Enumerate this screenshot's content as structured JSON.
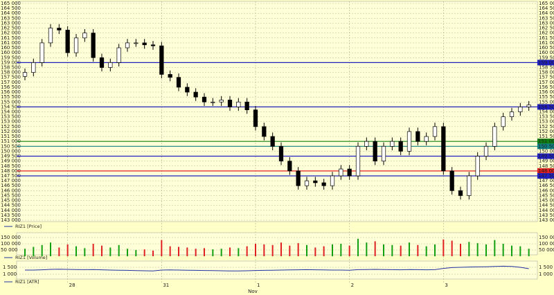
{
  "chart_data": {
    "type": "candlestick",
    "xlim": [
      0,
      60
    ],
    "xticks": [
      {
        "value": 5,
        "label": "28"
      },
      {
        "value": 16,
        "label": "31"
      },
      {
        "value": 27,
        "label": "1"
      },
      {
        "value": 38,
        "label": "2"
      },
      {
        "value": 49,
        "label": "3"
      }
    ],
    "x_axis_label": "Nov",
    "legend_price": "RIZ1 [Price]",
    "legend_volume": "RIZ1 [Volume]",
    "legend_atr": "RIZ1 [ATR]",
    "up_color": "#ffffff",
    "down_color": "#000000",
    "ylim": [
      143000,
      165000
    ],
    "yticks": [
      {
        "value": 143000,
        "label": "143 000"
      },
      {
        "value": 143500,
        "label": "143 500"
      },
      {
        "value": 144000,
        "label": "144 000"
      },
      {
        "value": 144500,
        "label": "144 500"
      },
      {
        "value": 145000,
        "label": "145 000"
      },
      {
        "value": 145500,
        "label": "145 500"
      },
      {
        "value": 146000,
        "label": "146 000"
      },
      {
        "value": 146500,
        "label": "146 500"
      },
      {
        "value": 147000,
        "label": "147 000"
      },
      {
        "value": 147500,
        "label": "147 500"
      },
      {
        "value": 148000,
        "label": "148 000"
      },
      {
        "value": 148500,
        "label": "148 500"
      },
      {
        "value": 149000,
        "label": "149 000"
      },
      {
        "value": 149500,
        "label": "149 500"
      },
      {
        "value": 150000,
        "label": "150 000"
      },
      {
        "value": 150500,
        "label": "150 500"
      },
      {
        "value": 151000,
        "label": "151 000"
      },
      {
        "value": 151500,
        "label": "151 500"
      },
      {
        "value": 152000,
        "label": "152 000"
      },
      {
        "value": 152500,
        "label": "152 500"
      },
      {
        "value": 153000,
        "label": "153 000"
      },
      {
        "value": 153500,
        "label": "153 500"
      },
      {
        "value": 154000,
        "label": "154 000"
      },
      {
        "value": 154500,
        "label": "154 500"
      },
      {
        "value": 155000,
        "label": "155 000"
      },
      {
        "value": 155500,
        "label": "155 500"
      },
      {
        "value": 156000,
        "label": "156 000"
      },
      {
        "value": 156500,
        "label": "156 500"
      },
      {
        "value": 157000,
        "label": "157 000"
      },
      {
        "value": 157500,
        "label": "157 500"
      },
      {
        "value": 158000,
        "label": "158 000"
      },
      {
        "value": 158500,
        "label": "158 500"
      },
      {
        "value": 159000,
        "label": "159 000"
      },
      {
        "value": 159500,
        "label": "159 500"
      },
      {
        "value": 160000,
        "label": "160 000"
      },
      {
        "value": 160500,
        "label": "160 500"
      },
      {
        "value": 161000,
        "label": "161 000"
      },
      {
        "value": 161500,
        "label": "161 500"
      },
      {
        "value": 162000,
        "label": "162 000"
      },
      {
        "value": 162500,
        "label": "162 500"
      },
      {
        "value": 163000,
        "label": "163 000"
      },
      {
        "value": 163500,
        "label": "163 500"
      },
      {
        "value": 164000,
        "label": "164 000"
      },
      {
        "value": 164500,
        "label": "164 500"
      },
      {
        "value": 165000,
        "label": "165 000"
      }
    ],
    "grid": true,
    "levels": [
      {
        "value": 159000,
        "label": "159 000",
        "color": "#2020c0"
      },
      {
        "value": 154500,
        "label": "154 500",
        "color": "#2020c0"
      },
      {
        "value": 151000,
        "label": "151 000",
        "color": "#108010"
      },
      {
        "value": 150500,
        "label": "150 500",
        "color": "#108080"
      },
      {
        "value": 149500,
        "label": "149 500",
        "color": "#2020c0"
      },
      {
        "value": 148000,
        "label": "148 000",
        "color": "#e02020"
      },
      {
        "value": 147500,
        "label": "147 500",
        "color": "#2020c0"
      }
    ],
    "open": [
      157600,
      158000,
      159000,
      161000,
      162500,
      162300,
      160000,
      161500,
      162000,
      159500,
      158500,
      159000,
      160500,
      161000,
      161000,
      160800,
      160700,
      157800,
      157500,
      156500,
      156000,
      155500,
      155000,
      155000,
      155200,
      154500,
      155000,
      154200,
      152500,
      151500,
      150500,
      149000,
      148000,
      146500,
      147000,
      146800,
      146500,
      147500,
      148200,
      147500,
      150500,
      151000,
      149000,
      150500,
      151000,
      150000,
      152000,
      151000,
      151500,
      152500,
      148000,
      146000,
      145500,
      147500,
      149500,
      150500,
      152500,
      153500,
      154000,
      154500
    ],
    "high": [
      158400,
      159400,
      161400,
      162900,
      162900,
      162700,
      161900,
      162400,
      162400,
      159900,
      159400,
      160900,
      161400,
      161400,
      161400,
      161200,
      161100,
      158200,
      157900,
      156900,
      156400,
      155900,
      155400,
      155600,
      155600,
      155400,
      155400,
      154600,
      152900,
      151900,
      150900,
      149400,
      148400,
      147400,
      147400,
      147200,
      147900,
      148600,
      148600,
      150900,
      151400,
      151400,
      150900,
      151400,
      151400,
      152400,
      152400,
      151900,
      152900,
      152900,
      148400,
      146400,
      147900,
      149900,
      150900,
      152900,
      153900,
      154400,
      154900,
      155100
    ],
    "low": [
      157200,
      157600,
      158600,
      160600,
      161900,
      159600,
      159600,
      161100,
      159100,
      158100,
      158100,
      158600,
      160100,
      160600,
      160400,
      160300,
      157400,
      157100,
      156100,
      155600,
      155100,
      154600,
      154600,
      154600,
      154100,
      154100,
      153800,
      152100,
      151100,
      150100,
      148600,
      147600,
      146100,
      146100,
      146400,
      146100,
      146100,
      147100,
      147100,
      147100,
      150100,
      148600,
      148600,
      150100,
      149600,
      149600,
      150600,
      150600,
      151100,
      147600,
      145600,
      145100,
      145100,
      147100,
      149100,
      150100,
      152100,
      153100,
      153600,
      154100
    ],
    "close": [
      158000,
      159000,
      161000,
      162500,
      162300,
      160000,
      161500,
      162000,
      159500,
      158500,
      159000,
      160500,
      161000,
      161000,
      160800,
      160700,
      157800,
      157500,
      156500,
      156000,
      155500,
      155000,
      155000,
      155200,
      154500,
      155000,
      154200,
      152500,
      151500,
      150500,
      149000,
      148000,
      146500,
      147000,
      146800,
      146500,
      147500,
      148200,
      147500,
      150500,
      151000,
      149000,
      150500,
      151000,
      150000,
      152000,
      151000,
      151500,
      152500,
      148000,
      146000,
      145500,
      147500,
      149500,
      150500,
      152500,
      153500,
      154000,
      154500,
      154700
    ],
    "volume": {
      "color_up": "#10a010",
      "color_down": "#e02020",
      "ylim": [
        0,
        178000
      ],
      "yticks": [
        {
          "value": 50000,
          "label": "50 000"
        },
        {
          "value": 100000,
          "label": "100 000"
        },
        {
          "value": 150000,
          "label": "150 000"
        }
      ],
      "values": [
        60000,
        75000,
        90000,
        110000,
        70000,
        95000,
        80000,
        65000,
        100000,
        85000,
        70000,
        90000,
        60000,
        50000,
        55000,
        45000,
        130000,
        80000,
        75000,
        70000,
        60000,
        65000,
        55000,
        60000,
        70000,
        65000,
        80000,
        100000,
        95000,
        90000,
        110000,
        85000,
        105000,
        90000,
        70000,
        80000,
        95000,
        100000,
        85000,
        140000,
        110000,
        120000,
        95000,
        90000,
        85000,
        110000,
        90000,
        80000,
        95000,
        135000,
        125000,
        100000,
        115000,
        105000,
        95000,
        130000,
        100000,
        85000,
        80000,
        60000
      ]
    },
    "atr": {
      "color": "#2030a0",
      "ylim": [
        700,
        1900
      ],
      "yticks": [
        {
          "value": 1000,
          "label": "1 000"
        },
        {
          "value": 1500,
          "label": "1 500"
        }
      ],
      "values": [
        1300,
        1300,
        1320,
        1350,
        1360,
        1350,
        1340,
        1330,
        1340,
        1320,
        1300,
        1290,
        1280,
        1260,
        1250,
        1240,
        1300,
        1310,
        1300,
        1290,
        1280,
        1270,
        1260,
        1250,
        1240,
        1240,
        1250,
        1270,
        1280,
        1290,
        1300,
        1310,
        1320,
        1330,
        1320,
        1310,
        1300,
        1300,
        1290,
        1330,
        1340,
        1350,
        1340,
        1330,
        1320,
        1340,
        1330,
        1320,
        1330,
        1420,
        1480,
        1500,
        1520,
        1530,
        1540,
        1560,
        1580,
        1560,
        1500,
        1400
      ]
    }
  }
}
